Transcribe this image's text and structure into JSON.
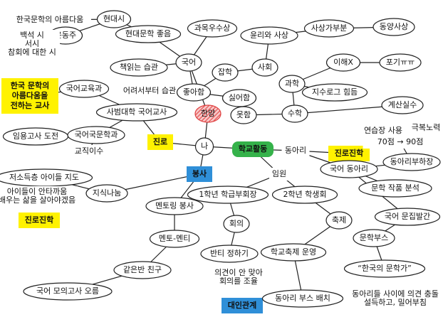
{
  "nodes": [
    {
      "text": "한국문학의 아름다움"
    },
    {
      "text": "현대시"
    },
    {
      "text": "윤동주"
    },
    {
      "lines": [
        "백석 시",
        "서시",
        "참회에 대한 시"
      ]
    },
    {
      "text": "현대문학 좋음"
    },
    {
      "text": "과목우수상"
    },
    {
      "text": "윤리와 사상"
    },
    {
      "text": "사상가부분"
    },
    {
      "text": "동양사상"
    },
    {
      "text": "책읽는 습관"
    },
    {
      "text": "국어"
    },
    {
      "text": "사회"
    },
    {
      "text": "이해X"
    },
    {
      "text": "포기ㅠㅠ"
    },
    {
      "lines": [
        "한국 문학의",
        "아름다움을",
        "전하는 교사"
      ]
    },
    {
      "text": "국어교육과"
    },
    {
      "text": "어려서부터 습관"
    },
    {
      "text": "잡학"
    },
    {
      "text": "좋아함"
    },
    {
      "text": "싫어함"
    },
    {
      "text": "과학"
    },
    {
      "text": "지수로그 힘듬"
    },
    {
      "text": "계산실수"
    },
    {
      "text": "한양"
    },
    {
      "text": "사범대학 국어교사"
    },
    {
      "text": "못함"
    },
    {
      "text": "수학"
    },
    {
      "text": "임용고사 도전"
    },
    {
      "text": "국어국문학과"
    },
    {
      "text": "교직이수"
    },
    {
      "text": "진로"
    },
    {
      "text": "나"
    },
    {
      "text": "학교활동"
    },
    {
      "text": "동아리"
    },
    {
      "text": "진로진학"
    },
    {
      "text": "연습장 사용"
    },
    {
      "text": "극복노력"
    },
    {
      "text": "70점 → 90점"
    },
    {
      "text": "동아리부하장"
    },
    {
      "text": "봉사"
    },
    {
      "text": "임원"
    },
    {
      "text": "국어 동아리"
    },
    {
      "text": "저소득층 아이들 지도"
    },
    {
      "lines": [
        "아이들이 안타까움",
        "배우는 삶을 살아야겠음"
      ]
    },
    {
      "text": "지식나눔"
    },
    {
      "text": "1학년 학급부회장"
    },
    {
      "text": "2학년 학생회"
    },
    {
      "text": "문학 작품 분석"
    },
    {
      "text": "진로진학"
    },
    {
      "text": "멘토링 봉사"
    },
    {
      "text": "회의"
    },
    {
      "text": "축제"
    },
    {
      "text": "국어 문집발간"
    },
    {
      "text": "멘토-멘티"
    },
    {
      "text": "반티 정하기"
    },
    {
      "text": "학교축제 운영"
    },
    {
      "text": "문학부스"
    },
    {
      "text": "같은반 친구"
    },
    {
      "lines": [
        "의견이 안 맞아",
        "회의를 조율"
      ]
    },
    {
      "text": "“한국의 문학가”"
    },
    {
      "text": "국어 모의고사 오름"
    },
    {
      "text": "대인관계"
    },
    {
      "text": "동아리 부스 배치"
    },
    {
      "lines": [
        "동아리들 사이에 의견 충돌",
        "설득하고, 밀어부침"
      ]
    }
  ]
}
